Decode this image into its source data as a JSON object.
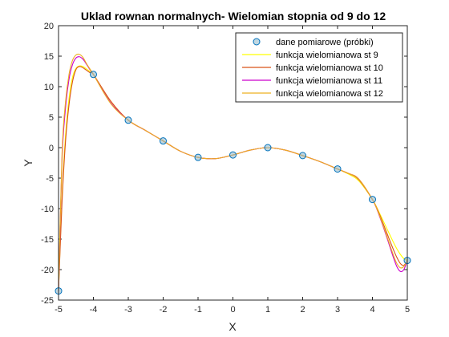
{
  "chart_data": {
    "type": "line",
    "title": "Uklad rownan normalnych- Wielomian stopnia od 9 do 12",
    "xlabel": "X",
    "ylabel": "Y",
    "xlim": [
      -5,
      5
    ],
    "ylim": [
      -25,
      20
    ],
    "xticks": [
      -5,
      -4,
      -3,
      -2,
      -1,
      0,
      1,
      2,
      3,
      4,
      5
    ],
    "yticks": [
      -25,
      -20,
      -15,
      -10,
      -5,
      0,
      5,
      10,
      15,
      20
    ],
    "grid": false,
    "legend_position": "top-right",
    "samples": {
      "name": "dane pomiarowe (próbki)",
      "marker": "circle",
      "color": "#0072BD",
      "fill": "#8DB6C8",
      "x": [
        -5,
        -4,
        -3,
        -2,
        -1,
        0,
        1,
        2,
        3,
        4,
        5
      ],
      "y": [
        -23.5,
        12.0,
        4.5,
        1.1,
        -1.6,
        -1.2,
        0.0,
        -1.3,
        -3.5,
        -8.5,
        -18.5
      ]
    },
    "series": [
      {
        "name": "funkcja wielomianowa st 9",
        "color": "#FFFF00",
        "x": [
          -5,
          -4.9,
          -4.8,
          -4.7,
          -4.6,
          -4.5,
          -4.4,
          -4.3,
          -4.2,
          -4.1,
          -4.0,
          -3.5,
          -3.0,
          -2.5,
          -2.0,
          -1.5,
          -1.0,
          -0.5,
          0.0,
          0.5,
          1.0,
          1.5,
          2.0,
          2.5,
          3.0,
          3.3,
          3.6,
          4.0,
          4.2,
          4.4,
          4.6,
          4.7,
          4.8,
          4.9,
          5.0
        ],
        "y": [
          -23.5,
          -8.0,
          2.0,
          8.0,
          11.5,
          13.0,
          13.4,
          13.3,
          12.9,
          12.5,
          12.0,
          7.6,
          4.5,
          2.8,
          1.1,
          -0.6,
          -1.6,
          -1.8,
          -1.2,
          -0.4,
          0.0,
          -0.4,
          -1.3,
          -2.3,
          -3.5,
          -4.3,
          -5.4,
          -8.5,
          -10.7,
          -13.1,
          -15.5,
          -16.6,
          -17.5,
          -18.2,
          -18.5
        ]
      },
      {
        "name": "funkcja wielomianowa st 10",
        "color": "#D95319",
        "x": [
          -5,
          -4.9,
          -4.8,
          -4.7,
          -4.6,
          -4.5,
          -4.4,
          -4.3,
          -4.2,
          -4.1,
          -4.0,
          -3.5,
          -3.0,
          -2.5,
          -2.0,
          -1.5,
          -1.0,
          -0.5,
          0.0,
          0.5,
          1.0,
          1.5,
          2.0,
          2.5,
          3.0,
          3.3,
          3.6,
          4.0,
          4.2,
          4.4,
          4.6,
          4.7,
          4.8,
          4.9,
          5.0
        ],
        "y": [
          -23.5,
          -9.0,
          1.0,
          7.0,
          10.8,
          12.8,
          13.3,
          13.1,
          12.7,
          12.3,
          12.0,
          7.6,
          4.5,
          2.8,
          1.1,
          -0.6,
          -1.6,
          -1.8,
          -1.2,
          -0.4,
          0.0,
          -0.4,
          -1.3,
          -2.3,
          -3.5,
          -4.2,
          -5.2,
          -8.5,
          -10.9,
          -13.8,
          -16.7,
          -18.0,
          -19.0,
          -19.3,
          -18.5
        ]
      },
      {
        "name": "funkcja wielomianowa st 11",
        "color": "#CC00CC",
        "x": [
          -5,
          -4.9,
          -4.8,
          -4.7,
          -4.6,
          -4.5,
          -4.4,
          -4.3,
          -4.2,
          -4.1,
          -4.0,
          -3.5,
          -3.0,
          -2.5,
          -2.0,
          -1.5,
          -1.0,
          -0.5,
          0.0,
          0.5,
          1.0,
          1.5,
          2.0,
          2.5,
          3.0,
          3.3,
          3.6,
          4.0,
          4.2,
          4.4,
          4.6,
          4.7,
          4.8,
          4.9,
          5.0
        ],
        "y": [
          -23.5,
          -2.0,
          6.5,
          11.2,
          13.6,
          14.7,
          14.9,
          14.5,
          13.7,
          12.8,
          12.0,
          7.3,
          4.5,
          2.8,
          1.1,
          -0.6,
          -1.6,
          -1.8,
          -1.2,
          -0.4,
          0.0,
          -0.4,
          -1.3,
          -2.3,
          -3.5,
          -4.2,
          -5.1,
          -8.5,
          -11.2,
          -14.5,
          -18.0,
          -19.5,
          -20.3,
          -20.0,
          -18.5
        ]
      },
      {
        "name": "funkcja wielomianowa st 12",
        "color": "#EDB120",
        "x": [
          -5,
          -4.9,
          -4.8,
          -4.7,
          -4.6,
          -4.5,
          -4.4,
          -4.3,
          -4.2,
          -4.1,
          -4.0,
          -3.5,
          -3.0,
          -2.5,
          -2.0,
          -1.5,
          -1.0,
          -0.5,
          0.0,
          0.5,
          1.0,
          1.5,
          2.0,
          2.5,
          3.0,
          3.3,
          3.6,
          4.0,
          4.2,
          4.4,
          4.6,
          4.7,
          4.8,
          4.9,
          5.0
        ],
        "y": [
          -23.5,
          -1.0,
          7.5,
          12.0,
          14.3,
          15.2,
          15.3,
          14.8,
          13.8,
          12.9,
          12.0,
          7.2,
          4.5,
          2.8,
          1.1,
          -0.6,
          -1.6,
          -1.8,
          -1.2,
          -0.4,
          0.0,
          -0.4,
          -1.3,
          -2.3,
          -3.5,
          -4.2,
          -5.1,
          -8.5,
          -11.1,
          -14.3,
          -17.6,
          -19.0,
          -19.7,
          -19.5,
          -18.5
        ]
      }
    ]
  }
}
